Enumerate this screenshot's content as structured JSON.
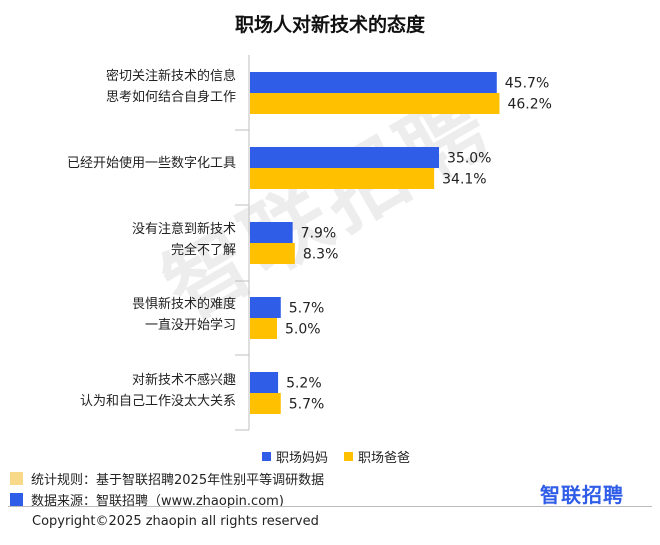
{
  "title": "职场人对新技术的态度",
  "watermark": "智联招聘",
  "brand": "智联招聘",
  "copyright": "Copyright©2025 zhaopin all rights reserved",
  "notes": [
    {
      "text": "统计规则：基于智联招聘2025年性别平等调研数据",
      "color": "#f8d98a"
    },
    {
      "text": "数据来源：智联招聘（www.zhaopin.com)",
      "color": "#2f5de8"
    }
  ],
  "chart_data": {
    "type": "bar",
    "orientation": "horizontal",
    "title": "职场人对新技术的态度",
    "categories": [
      [
        "密切关注新技术的信息",
        "思考如何结合自身工作"
      ],
      [
        "已经开始使用一些数字化工具"
      ],
      [
        "没有注意到新技术",
        "完全不了解"
      ],
      [
        "畏惧新技术的难度",
        "一直没开始学习"
      ],
      [
        "对新技术不感兴趣",
        "认为和自己工作没太大关系"
      ]
    ],
    "series": [
      {
        "name": "职场妈妈",
        "color": "#2f5de8",
        "values": [
          45.7,
          35.0,
          7.9,
          5.7,
          5.2
        ],
        "labels": [
          "45.7%",
          "35.0%",
          "7.9%",
          "5.7%",
          "5.2%"
        ]
      },
      {
        "name": "职场爸爸",
        "color": "#ffc000",
        "values": [
          46.2,
          34.1,
          8.3,
          5.0,
          5.7
        ],
        "labels": [
          "46.2%",
          "34.1%",
          "8.3%",
          "5.0%",
          "5.7%"
        ]
      }
    ],
    "xlim": [
      0,
      50
    ],
    "grid": false,
    "legend": "bottom"
  }
}
